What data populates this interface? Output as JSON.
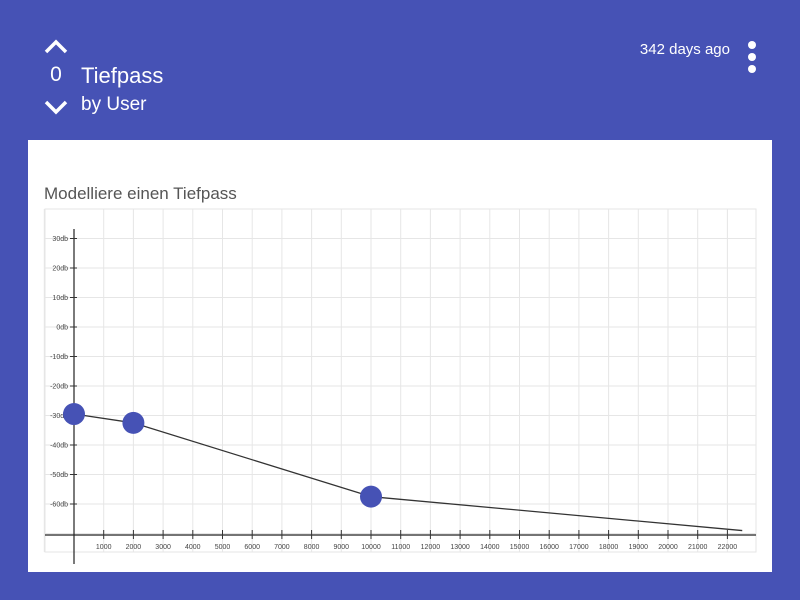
{
  "post": {
    "vote_count": "0",
    "title": "Tiefpass",
    "author": "by User",
    "time_ago": "342 days ago"
  },
  "colors": {
    "background": "#4652b5",
    "card": "#ffffff",
    "point": "#4652b5",
    "line": "#333333",
    "grid": "#e6e6e6"
  },
  "icons": {
    "upvote": "chevron-up-icon",
    "downvote": "chevron-down-icon",
    "menu": "more-vert-icon"
  },
  "chart_data": {
    "type": "line",
    "title": "Modelliere einen Tiefpass",
    "xlabel": "",
    "ylabel": "",
    "xlim": [
      -500,
      22500
    ],
    "ylim": [
      -70,
      35
    ],
    "grid": true,
    "x_ticks": [
      1000,
      2000,
      3000,
      4000,
      5000,
      6000,
      7000,
      8000,
      9000,
      10000,
      11000,
      12000,
      13000,
      14000,
      15000,
      16000,
      17000,
      18000,
      19000,
      20000,
      21000,
      22000
    ],
    "y_ticks": [
      30,
      20,
      10,
      0,
      -10,
      -20,
      -30,
      -40,
      -50,
      -60
    ],
    "y_tick_labels": [
      "30db",
      "20db",
      "10db",
      "0db",
      "-10db",
      "-20db",
      "-30db",
      "-40db",
      "-50db",
      "-60db"
    ],
    "x": [
      0,
      2000,
      10000,
      22500
    ],
    "y": [
      -29.5,
      -32.5,
      -57.5,
      -69
    ],
    "control_points": [
      0,
      1,
      2
    ]
  }
}
